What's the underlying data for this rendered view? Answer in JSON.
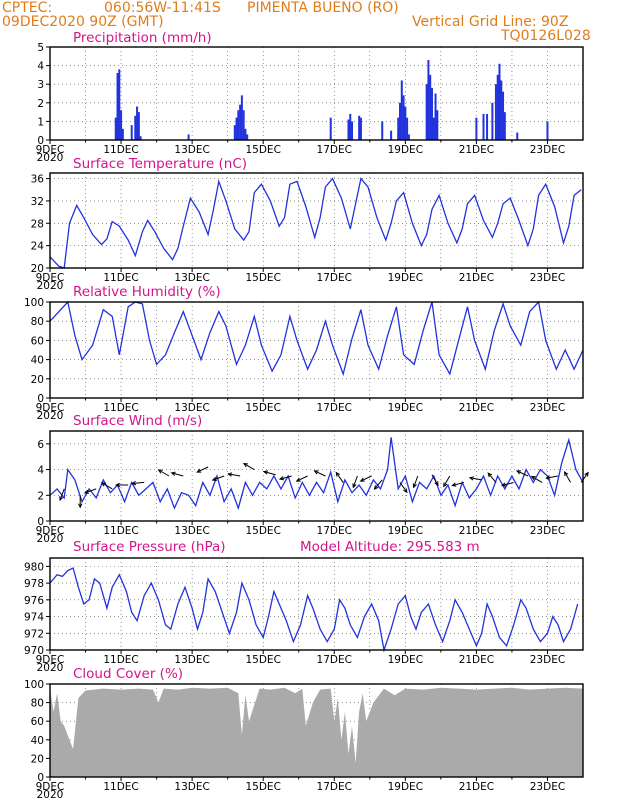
{
  "header": {
    "source": "CPTEC:",
    "coords": "060:56W-11:41S",
    "station": "PIMENTA BUENO (RO)",
    "date": "09DEC2020 90Z (GMT)",
    "grid_note": "Vertical Grid Line: 90Z",
    "run_code": "TQ0126L028"
  },
  "x_axis": {
    "tick_labels": [
      "9DEC",
      "11DEC",
      "13DEC",
      "15DEC",
      "17DEC",
      "19DEC",
      "21DEC",
      "23DEC"
    ],
    "tick_days": [
      9,
      11,
      13,
      15,
      17,
      19,
      21,
      23
    ],
    "year_label": "2020",
    "start_day": 9,
    "end_day": 24
  },
  "colors": {
    "line": "#2233dd",
    "bar": "#2233dd",
    "cloud": "#aaaaaa",
    "title": "#d4148c",
    "header": "#e07d1b"
  },
  "chart_data": [
    {
      "id": "precip",
      "type": "bar",
      "title": "Precipitation (mm/h)",
      "ylim": [
        0,
        5
      ],
      "yticks": [
        0,
        1,
        2,
        3,
        4,
        5
      ],
      "grid": true,
      "x": [
        10.85,
        10.9,
        10.95,
        11.0,
        11.05,
        11.3,
        11.4,
        11.45,
        11.5,
        11.55,
        12.9,
        14.2,
        14.25,
        14.3,
        14.35,
        14.4,
        14.45,
        14.5,
        14.55,
        16.9,
        17.4,
        17.45,
        17.5,
        17.7,
        17.75,
        18.35,
        18.6,
        18.8,
        18.85,
        18.9,
        18.95,
        19.0,
        19.05,
        19.1,
        19.6,
        19.65,
        19.7,
        19.75,
        19.8,
        19.85,
        19.9,
        21.0,
        21.2,
        21.3,
        21.45,
        21.55,
        21.6,
        21.65,
        21.7,
        21.75,
        21.8,
        22.15,
        23.0
      ],
      "values": [
        1.2,
        3.6,
        3.8,
        1.6,
        0.6,
        0.8,
        1.3,
        1.8,
        1.5,
        0.2,
        0.3,
        0.8,
        1.2,
        1.6,
        1.9,
        2.4,
        1.6,
        0.6,
        0.3,
        1.2,
        1.1,
        1.4,
        1.0,
        1.3,
        1.2,
        1.0,
        0.5,
        1.2,
        2.0,
        3.2,
        2.4,
        1.8,
        1.2,
        0.3,
        3.0,
        4.3,
        3.5,
        2.8,
        1.2,
        2.5,
        1.6,
        1.2,
        1.4,
        1.4,
        2.0,
        3.0,
        3.5,
        4.1,
        3.2,
        2.6,
        1.5,
        0.4,
        1.0
      ]
    },
    {
      "id": "temp",
      "type": "line",
      "title": "Surface Temperature (nC)",
      "ylim": [
        20,
        37
      ],
      "yticks": [
        20,
        24,
        28,
        32,
        36
      ],
      "grid": true,
      "x": [
        9.0,
        9.25,
        9.4,
        9.55,
        9.75,
        9.95,
        10.2,
        10.45,
        10.6,
        10.75,
        10.95,
        11.2,
        11.4,
        11.6,
        11.75,
        11.95,
        12.2,
        12.45,
        12.6,
        12.75,
        12.95,
        13.2,
        13.45,
        13.6,
        13.75,
        13.95,
        14.2,
        14.45,
        14.6,
        14.75,
        14.95,
        15.2,
        15.45,
        15.6,
        15.75,
        15.95,
        16.2,
        16.45,
        16.6,
        16.75,
        16.95,
        17.2,
        17.45,
        17.6,
        17.75,
        17.95,
        18.2,
        18.45,
        18.6,
        18.75,
        18.95,
        19.2,
        19.45,
        19.6,
        19.75,
        19.95,
        20.2,
        20.45,
        20.6,
        20.75,
        20.95,
        21.2,
        21.45,
        21.6,
        21.75,
        21.95,
        22.2,
        22.45,
        22.6,
        22.75,
        22.95,
        23.2,
        23.45,
        23.6,
        23.75,
        23.95
      ],
      "values": [
        22.0,
        20.3,
        20.0,
        28.0,
        31.2,
        29.0,
        26.0,
        24.2,
        25.2,
        28.3,
        27.5,
        25.0,
        22.2,
        26.5,
        28.5,
        26.5,
        23.5,
        21.5,
        23.5,
        27.5,
        32.5,
        30.0,
        26.0,
        30.5,
        35.5,
        32.0,
        27.0,
        25.0,
        26.5,
        33.5,
        35.0,
        32.0,
        27.5,
        29.0,
        35.0,
        35.5,
        31.0,
        25.5,
        29.0,
        34.5,
        36.0,
        32.5,
        27.0,
        31.5,
        36.0,
        34.5,
        29.0,
        25.0,
        28.0,
        32.0,
        33.5,
        28.0,
        24.0,
        26.0,
        30.5,
        33.0,
        28.0,
        24.5,
        27.0,
        31.5,
        33.0,
        28.5,
        25.5,
        28.0,
        31.5,
        32.5,
        28.5,
        24.0,
        27.0,
        33.0,
        35.0,
        31.0,
        24.5,
        27.5,
        33.0,
        34.0
      ]
    },
    {
      "id": "rh",
      "type": "line",
      "title": "Relative Humidity (%)",
      "ylim": [
        0,
        100
      ],
      "yticks": [
        0,
        20,
        40,
        60,
        80,
        100
      ],
      "grid": true,
      "x": [
        9.0,
        9.3,
        9.5,
        9.7,
        9.9,
        10.2,
        10.5,
        10.75,
        10.95,
        11.2,
        11.4,
        11.6,
        11.8,
        12.0,
        12.25,
        12.5,
        12.75,
        12.95,
        13.25,
        13.5,
        13.75,
        13.95,
        14.25,
        14.5,
        14.75,
        14.95,
        15.25,
        15.5,
        15.75,
        15.95,
        16.25,
        16.5,
        16.75,
        16.95,
        17.25,
        17.5,
        17.75,
        17.95,
        18.25,
        18.5,
        18.75,
        18.95,
        19.25,
        19.5,
        19.75,
        19.95,
        20.25,
        20.5,
        20.75,
        20.95,
        21.25,
        21.5,
        21.75,
        21.95,
        22.25,
        22.5,
        22.75,
        22.95,
        23.25,
        23.5,
        23.75,
        24.0
      ],
      "values": [
        80,
        92,
        100,
        65,
        40,
        55,
        92,
        85,
        45,
        95,
        100,
        98,
        60,
        35,
        45,
        68,
        90,
        70,
        40,
        68,
        90,
        75,
        35,
        55,
        85,
        55,
        28,
        45,
        85,
        60,
        30,
        50,
        80,
        55,
        25,
        62,
        92,
        55,
        30,
        65,
        95,
        45,
        35,
        70,
        100,
        45,
        25,
        60,
        95,
        60,
        30,
        70,
        98,
        75,
        55,
        90,
        100,
        60,
        30,
        50,
        30,
        50
      ]
    },
    {
      "id": "wind",
      "type": "line",
      "title": "Surface Wind (m/s)",
      "ylim": [
        0,
        7
      ],
      "yticks": [
        0,
        2,
        4,
        6
      ],
      "grid": true,
      "x": [
        9.0,
        9.2,
        9.4,
        9.5,
        9.7,
        9.9,
        10.1,
        10.3,
        10.5,
        10.7,
        10.9,
        11.1,
        11.3,
        11.5,
        11.7,
        11.9,
        12.1,
        12.3,
        12.5,
        12.7,
        12.9,
        13.1,
        13.3,
        13.5,
        13.7,
        13.9,
        14.1,
        14.3,
        14.5,
        14.7,
        14.9,
        15.1,
        15.3,
        15.5,
        15.7,
        15.9,
        16.1,
        16.3,
        16.5,
        16.7,
        16.9,
        17.1,
        17.3,
        17.5,
        17.7,
        17.9,
        18.1,
        18.3,
        18.5,
        18.6,
        18.8,
        19.0,
        19.2,
        19.4,
        19.6,
        19.8,
        20.0,
        20.2,
        20.4,
        20.6,
        20.8,
        21.0,
        21.2,
        21.4,
        21.6,
        21.8,
        22.0,
        22.2,
        22.4,
        22.6,
        22.8,
        23.0,
        23.2,
        23.4,
        23.6,
        23.8,
        24.0
      ],
      "values": [
        2.0,
        2.5,
        1.8,
        4.0,
        3.2,
        1.5,
        2.5,
        1.8,
        3.2,
        2.2,
        2.8,
        1.5,
        3.0,
        2.0,
        2.5,
        3.0,
        1.5,
        2.5,
        1.0,
        2.2,
        2.0,
        1.2,
        3.0,
        2.0,
        3.5,
        1.5,
        2.5,
        1.0,
        3.0,
        2.0,
        3.0,
        2.5,
        3.5,
        2.5,
        3.5,
        1.8,
        3.0,
        2.0,
        3.0,
        2.2,
        3.8,
        1.5,
        3.2,
        2.2,
        2.8,
        2.0,
        3.2,
        2.5,
        4.0,
        6.5,
        2.5,
        3.5,
        1.5,
        3.0,
        2.5,
        3.5,
        2.0,
        2.8,
        1.2,
        3.0,
        1.8,
        2.5,
        3.5,
        2.0,
        3.5,
        2.5,
        3.5,
        2.5,
        4.0,
        3.0,
        4.0,
        3.5,
        2.0,
        4.5,
        6.3,
        4.0,
        3.0
      ],
      "arrows": {
        "x": [
          9.4,
          9.85,
          10.3,
          10.75,
          11.2,
          11.65,
          12.35,
          12.75,
          13.45,
          13.9,
          14.35,
          14.75,
          15.35,
          15.8,
          16.25,
          16.75,
          17.25,
          17.65,
          18.05,
          18.35,
          18.85,
          19.35,
          19.75,
          20.25,
          20.65,
          21.15,
          21.55,
          22.05,
          22.45,
          22.85,
          23.3,
          23.65,
          23.95
        ],
        "direction_deg": [
          200,
          180,
          250,
          300,
          270,
          265,
          300,
          285,
          245,
          250,
          280,
          300,
          285,
          255,
          245,
          295,
          325,
          200,
          245,
          220,
          145,
          200,
          150,
          210,
          255,
          280,
          320,
          255,
          295,
          300,
          260,
          330,
          35
        ],
        "speed": [
          2.5,
          2.0,
          2.5,
          2.5,
          2.8,
          3.0,
          3.5,
          3.5,
          4.2,
          3.5,
          3.5,
          4.0,
          3.6,
          3.5,
          3.5,
          3.5,
          3.0,
          3.5,
          3.5,
          3.2,
          3.0,
          3.5,
          3.6,
          3.5,
          3.0,
          3.2,
          3.0,
          3.0,
          3.5,
          3.0,
          3.5,
          3.0,
          3.0
        ]
      }
    },
    {
      "id": "pressure",
      "type": "line",
      "title": "Surface Pressure (hPa)",
      "annotation": "Model Altitude: 295.583 m",
      "ylim": [
        970,
        981
      ],
      "yticks": [
        970,
        972,
        974,
        976,
        978,
        980
      ],
      "grid": true,
      "x": [
        9.0,
        9.2,
        9.35,
        9.5,
        9.65,
        9.8,
        9.95,
        10.1,
        10.25,
        10.4,
        10.6,
        10.75,
        10.95,
        11.15,
        11.3,
        11.45,
        11.65,
        11.85,
        12.05,
        12.25,
        12.4,
        12.6,
        12.8,
        13.0,
        13.15,
        13.3,
        13.45,
        13.65,
        13.85,
        14.05,
        14.25,
        14.4,
        14.6,
        14.8,
        15.0,
        15.15,
        15.3,
        15.45,
        15.65,
        15.85,
        16.05,
        16.25,
        16.4,
        16.6,
        16.8,
        17.0,
        17.15,
        17.3,
        17.45,
        17.65,
        17.85,
        18.05,
        18.25,
        18.4,
        18.6,
        18.8,
        19.0,
        19.15,
        19.3,
        19.45,
        19.65,
        19.85,
        20.05,
        20.25,
        20.4,
        20.6,
        20.8,
        21.0,
        21.15,
        21.3,
        21.45,
        21.65,
        21.85,
        22.05,
        22.25,
        22.4,
        22.6,
        22.8,
        23.0,
        23.15,
        23.3,
        23.45,
        23.65,
        23.85
      ],
      "values": [
        978.0,
        979.0,
        978.8,
        979.5,
        979.8,
        977.5,
        975.5,
        976.0,
        978.5,
        978.0,
        975.0,
        977.5,
        979.0,
        977.0,
        974.5,
        973.5,
        976.5,
        978.0,
        976.0,
        973.0,
        972.5,
        975.5,
        977.5,
        975.0,
        972.5,
        974.5,
        978.5,
        977.0,
        974.5,
        972.0,
        974.5,
        978.0,
        976.0,
        973.0,
        971.5,
        974.0,
        977.0,
        975.5,
        973.5,
        971.0,
        973.0,
        976.5,
        975.0,
        972.5,
        971.0,
        972.5,
        976.0,
        975.0,
        973.0,
        971.5,
        974.0,
        975.5,
        973.5,
        970.0,
        972.5,
        975.5,
        976.5,
        974.0,
        972.5,
        974.5,
        975.5,
        973.0,
        971.0,
        973.5,
        976.0,
        974.5,
        972.5,
        970.5,
        972.0,
        975.5,
        974.0,
        971.5,
        970.5,
        973.0,
        976.0,
        975.0,
        972.5,
        971.0,
        972.0,
        974.0,
        973.0,
        971.0,
        972.5,
        975.5
      ]
    },
    {
      "id": "cloud",
      "type": "area",
      "title": "Cloud Cover (%)",
      "ylim": [
        0,
        100
      ],
      "yticks": [
        0,
        20,
        40,
        60,
        80,
        100
      ],
      "grid": true,
      "x": [
        9.0,
        9.1,
        9.2,
        9.3,
        9.4,
        9.55,
        9.65,
        9.8,
        10.0,
        10.5,
        11.0,
        11.5,
        11.9,
        12.05,
        12.2,
        12.6,
        13.0,
        13.5,
        14.0,
        14.3,
        14.4,
        14.5,
        14.6,
        14.9,
        15.2,
        15.6,
        15.9,
        16.1,
        16.2,
        16.4,
        16.6,
        16.9,
        17.0,
        17.1,
        17.2,
        17.3,
        17.4,
        17.5,
        17.6,
        17.7,
        17.8,
        17.9,
        18.1,
        18.4,
        18.7,
        19.0,
        19.5,
        20.0,
        20.5,
        21.0,
        21.5,
        22.0,
        22.5,
        23.0,
        23.5,
        24.0
      ],
      "values": [
        95,
        70,
        90,
        60,
        55,
        40,
        30,
        85,
        93,
        95,
        94,
        95,
        94,
        80,
        95,
        94,
        96,
        95,
        96,
        90,
        45,
        88,
        60,
        95,
        94,
        96,
        90,
        95,
        55,
        80,
        94,
        95,
        60,
        85,
        40,
        70,
        25,
        55,
        15,
        70,
        90,
        60,
        80,
        95,
        88,
        95,
        94,
        96,
        95,
        94,
        95,
        96,
        94,
        95,
        96,
        95
      ]
    }
  ]
}
